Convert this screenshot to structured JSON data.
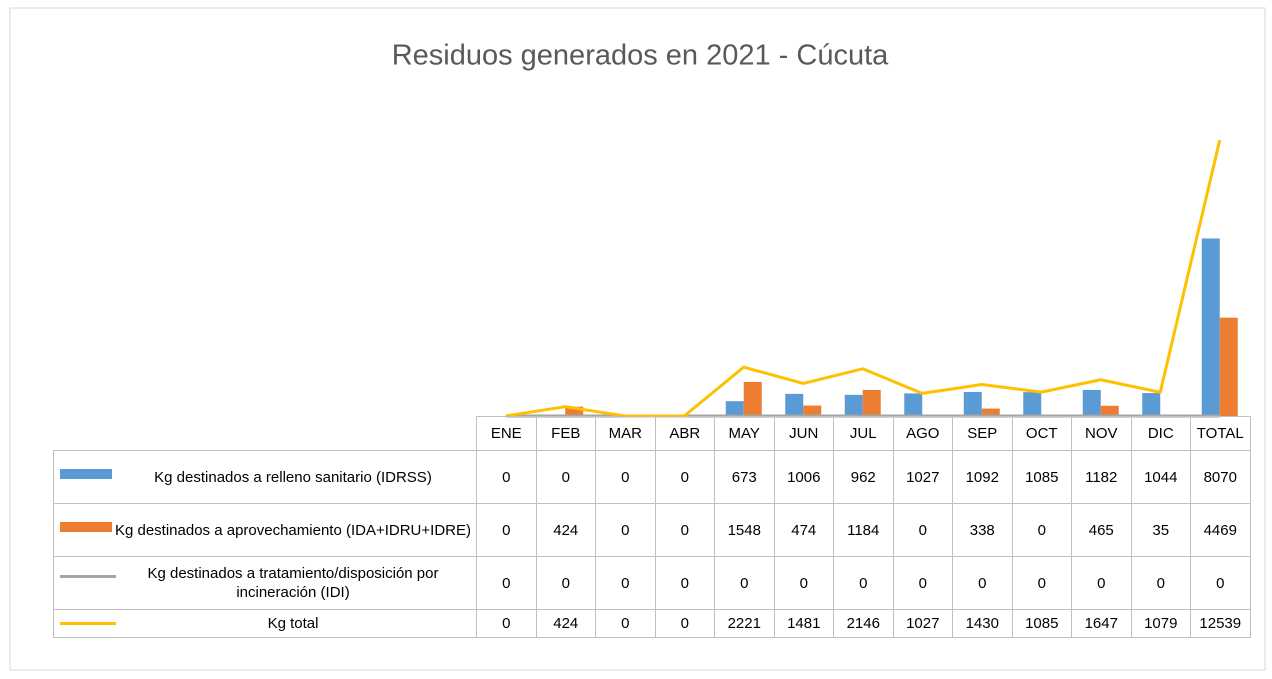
{
  "chart_data": {
    "type": "combo",
    "title": "Residuos generados en 2021 - Cúcuta",
    "categories": [
      "ENE",
      "FEB",
      "MAR",
      "ABR",
      "MAY",
      "JUN",
      "JUL",
      "AGO",
      "SEP",
      "OCT",
      "NOV",
      "DIC",
      "TOTAL"
    ],
    "ylim": [
      0,
      14000
    ],
    "series": [
      {
        "name": "Kg destinados a relleno sanitario (IDRSS)",
        "type": "bar",
        "color": "#5b9bd5",
        "values": [
          0,
          0,
          0,
          0,
          673,
          1006,
          962,
          1027,
          1092,
          1085,
          1182,
          1044,
          8070
        ]
      },
      {
        "name": "Kg destinados a aprovechamiento (IDA+IDRU+IDRE)",
        "type": "bar",
        "color": "#ed7d31",
        "values": [
          0,
          424,
          0,
          0,
          1548,
          474,
          1184,
          0,
          338,
          0,
          465,
          35,
          4469
        ]
      },
      {
        "name": "Kg destinados a tratamiento/disposición por incineración (IDI)",
        "type": "line",
        "color": "#a5a5a5",
        "values": [
          0,
          0,
          0,
          0,
          0,
          0,
          0,
          0,
          0,
          0,
          0,
          0,
          0
        ]
      },
      {
        "name": "Kg total",
        "type": "line",
        "color": "#ffc000",
        "values": [
          0,
          424,
          0,
          0,
          2221,
          1481,
          2146,
          1027,
          1430,
          1085,
          1647,
          1079,
          12539
        ]
      }
    ]
  }
}
